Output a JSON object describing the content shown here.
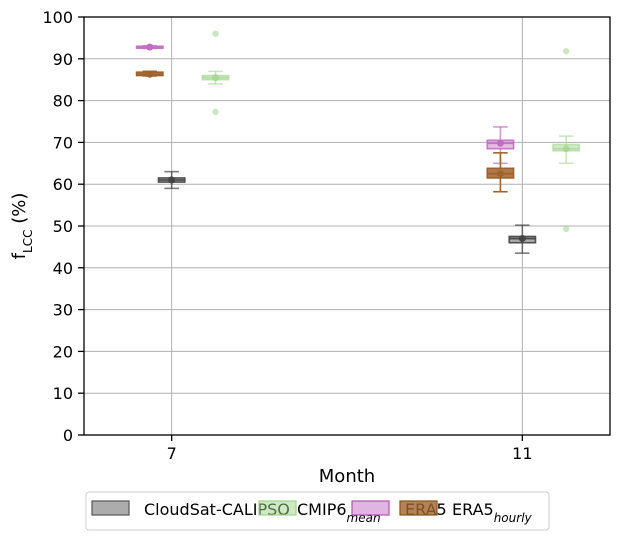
{
  "chart_data": {
    "type": "box",
    "title": "",
    "xlabel": "Month",
    "ylabel": "f",
    "ylabel_sub": "LCC",
    "ylabel_unit": " (%)",
    "ylim": [
      0,
      100
    ],
    "yticks": [
      0,
      10,
      20,
      30,
      40,
      50,
      60,
      70,
      80,
      90,
      100
    ],
    "xlim": [
      6,
      12
    ],
    "xticks": [
      7,
      11
    ],
    "grid": true,
    "legend_position": "below",
    "series": [
      {
        "name": "CloudSat-CALIPSO",
        "name_sub": "",
        "color": "#7f7f7f",
        "boxes": [
          {
            "x": 7,
            "whisker_low": 59,
            "q1": 60.5,
            "median": 61,
            "q3": 61.5,
            "whisker_high": 63,
            "mean": 61,
            "outliers": []
          },
          {
            "x": 11,
            "whisker_low": 43.5,
            "q1": 46,
            "median": 47,
            "q3": 47.5,
            "whisker_high": 50.2,
            "mean": 47,
            "outliers": []
          }
        ]
      },
      {
        "name": "CMIP6",
        "name_sub": "mean",
        "color": "#9fd38a",
        "boxes": [
          {
            "x": 7,
            "whisker_low": 84,
            "q1": 85,
            "median": 85.5,
            "q3": 86,
            "whisker_high": 87,
            "mean": 85.5,
            "outliers": [
              96,
              77.3
            ]
          },
          {
            "x": 11,
            "whisker_low": 65,
            "q1": 68,
            "median": 68.5,
            "q3": 69.5,
            "whisker_high": 71.5,
            "mean": 68.5,
            "outliers": [
              91.8,
              49.3
            ]
          }
        ]
      },
      {
        "name": "ERA5",
        "name_sub": "",
        "color": "#c36bc3",
        "boxes": [
          {
            "x": 7,
            "whisker_low": 92.5,
            "q1": 92.6,
            "median": 92.8,
            "q3": 93,
            "whisker_high": 93.1,
            "mean": 92.8,
            "outliers": []
          },
          {
            "x": 11,
            "whisker_low": 65,
            "q1": 68.5,
            "median": 69.8,
            "q3": 70.5,
            "whisker_high": 73.7,
            "mean": 69.8,
            "outliers": []
          }
        ]
      },
      {
        "name": "ERA5",
        "name_sub": "hourly",
        "color": "#a0632d",
        "boxes": [
          {
            "x": 7,
            "whisker_low": 85.9,
            "q1": 86,
            "median": 86.3,
            "q3": 86.8,
            "whisker_high": 87,
            "mean": 86.3,
            "outliers": []
          },
          {
            "x": 11,
            "whisker_low": 58.2,
            "q1": 61.5,
            "median": 62.5,
            "q3": 63.8,
            "whisker_high": 67.5,
            "mean": 62.5,
            "outliers": []
          }
        ]
      }
    ]
  }
}
